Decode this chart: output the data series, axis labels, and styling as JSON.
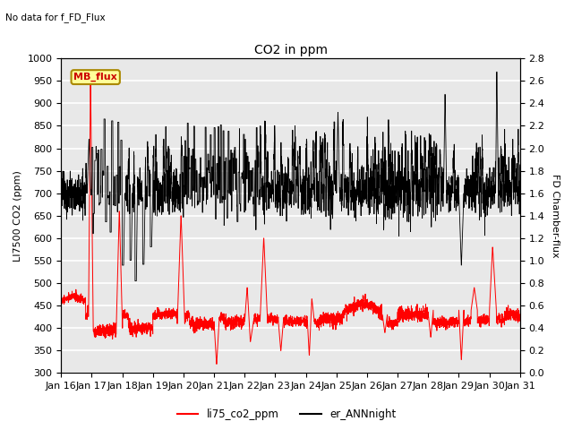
{
  "title": "CO2 in ppm",
  "subtitle": "No data for f_FD_Flux",
  "ylabel_left": "LI7500 CO2 (ppm)",
  "ylabel_right": "FD Chamber-flux",
  "ylim_left": [
    300,
    1000
  ],
  "ylim_right": [
    0.0,
    2.8
  ],
  "yticks_left": [
    300,
    350,
    400,
    450,
    500,
    550,
    600,
    650,
    700,
    750,
    800,
    850,
    900,
    950,
    1000
  ],
  "yticks_right": [
    0.0,
    0.2,
    0.4,
    0.6,
    0.8,
    1.0,
    1.2,
    1.4,
    1.6,
    1.8,
    2.0,
    2.2,
    2.4,
    2.6,
    2.8
  ],
  "xtick_labels": [
    "Jan 16",
    "Jan 17",
    "Jan 18",
    "Jan 19",
    "Jan 20",
    "Jan 21",
    "Jan 22",
    "Jan 23",
    "Jan 24",
    "Jan 25",
    "Jan 26",
    "Jan 27",
    "Jan 28",
    "Jan 29",
    "Jan 30",
    "Jan 31"
  ],
  "color_red": "#FF0000",
  "color_black": "#000000",
  "legend_label_red": "li75_co2_ppm",
  "legend_label_black": "er_ANNnight",
  "box_label": "MB_flux",
  "box_facecolor": "#FFFF99",
  "box_edgecolor": "#AA8800",
  "background_color": "#E8E8E8",
  "grid_color": "#FFFFFF",
  "n_points": 3600,
  "seed": 42
}
